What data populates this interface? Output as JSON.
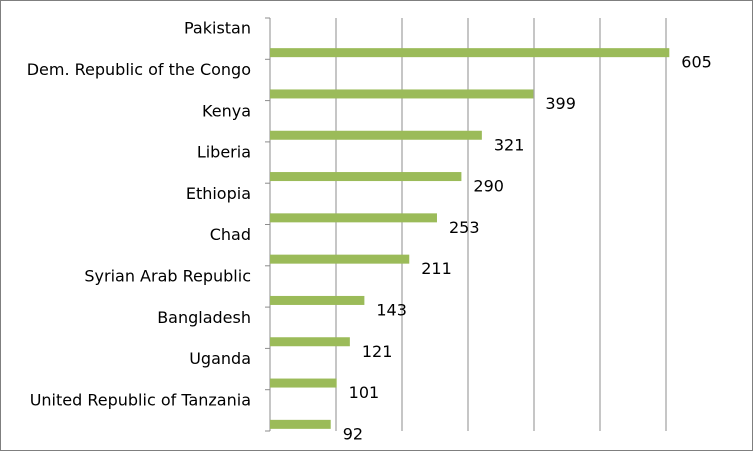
{
  "chart_data": {
    "type": "bar",
    "orientation": "horizontal",
    "title": "",
    "xlabel": "",
    "ylabel": "",
    "xlim": [
      0,
      700
    ],
    "grid": "vertical gridlines every 100",
    "legend": "none",
    "bar_color": "#9bbb59",
    "categories": [
      "Pakistan",
      "Dem. Republic of the Congo",
      "Kenya",
      "Liberia",
      "Ethiopia",
      "Chad",
      "Syrian Arab Republic",
      "Bangladesh",
      "Uganda",
      "United Republic of Tanzania"
    ],
    "values": [
      605,
      399,
      321,
      290,
      253,
      211,
      143,
      121,
      101,
      92
    ],
    "value_labels": [
      "605",
      "399",
      "321",
      "290",
      "253",
      "211",
      "143",
      "121",
      "101",
      "92"
    ]
  }
}
